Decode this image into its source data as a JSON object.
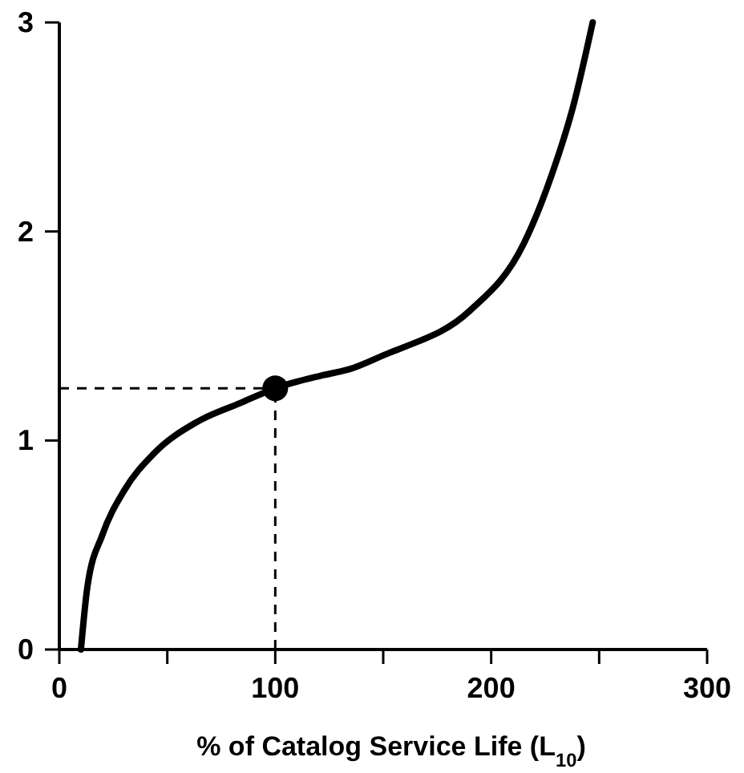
{
  "chart_data": {
    "type": "line",
    "xlabel": "% of Catalog Service Life (L$_{10}$)",
    "xlim": [
      0,
      300
    ],
    "xticks": [
      0,
      {
        "value": 50,
        "label": null
      },
      100,
      {
        "value": 150,
        "label": null
      },
      200,
      {
        "value": 250,
        "label": null
      },
      300
    ],
    "ylim": [
      0,
      3
    ],
    "yticks": [
      0,
      1,
      2,
      3
    ],
    "grid": false,
    "series": [
      {
        "color": "#000000",
        "x": [
          10,
          13,
          20,
          30,
          44,
          64,
          84,
          100,
          121,
          134,
          153,
          158,
          190,
          215,
          228,
          238,
          247
        ],
        "values": [
          0,
          0.3,
          0.55,
          0.76,
          0.94,
          1.09,
          1.18,
          1.25,
          1.31,
          1.34,
          1.42,
          1.44,
          1.62,
          1.94,
          2.27,
          2.6,
          3.0
        ]
      },
      {
        "type": "scatter",
        "marker": "circle",
        "color": "#000000",
        "x": [
          100
        ],
        "values": [
          1.25
        ]
      }
    ],
    "ref_lines": [
      {
        "axis": "x",
        "value": 100,
        "line_style": "dashed",
        "color": "#000000"
      },
      {
        "axis": "y",
        "value": 1.25,
        "line_style": "dashed",
        "color": "#000000"
      }
    ]
  }
}
